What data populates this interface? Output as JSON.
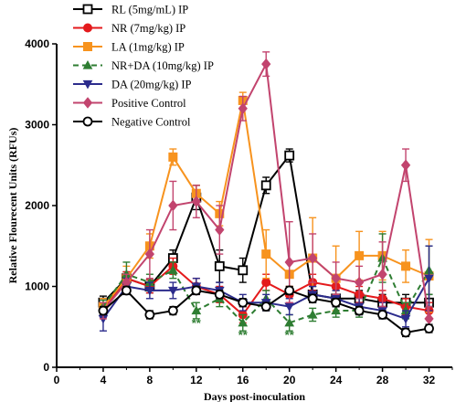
{
  "chart_data": {
    "type": "line",
    "xlabel": "Days post-inoculation",
    "ylabel": "Relative Flourecent Units (RFUs)",
    "xlim": [
      0,
      34
    ],
    "ylim": [
      0,
      4000
    ],
    "xticks": [
      0,
      4,
      8,
      12,
      16,
      20,
      24,
      28,
      32
    ],
    "xtick_labels": [
      "0",
      "4",
      "8",
      "12",
      "16",
      "20",
      "24",
      "28",
      "32"
    ],
    "yticks": [
      0,
      1000,
      2000,
      3000,
      4000
    ],
    "ytick_labels": [
      "0",
      "1000",
      "2000",
      "3000",
      "4000"
    ],
    "legend_position": "top-left",
    "x": [
      4,
      6,
      8,
      10,
      12,
      14,
      16,
      18,
      20,
      22,
      24,
      26,
      28,
      30,
      32
    ],
    "series": [
      {
        "name": "RL (5mg/mL) IP",
        "color": "#000000",
        "marker": "square-open",
        "dash": "solid",
        "values": [
          800,
          1100,
          1000,
          1350,
          2100,
          1250,
          1200,
          2250,
          2620,
          900,
          850,
          850,
          800,
          800,
          800
        ],
        "errors": [
          80,
          80,
          80,
          100,
          150,
          200,
          150,
          100,
          80,
          100,
          100,
          100,
          100,
          100,
          100
        ]
      },
      {
        "name": "NR (7mg/kg) IP",
        "color": "#e41a1c",
        "marker": "circle-filled",
        "dash": "solid",
        "values": [
          700,
          1100,
          1000,
          1250,
          1000,
          900,
          650,
          1050,
          900,
          1050,
          1000,
          900,
          850,
          750,
          700
        ],
        "errors": [
          80,
          80,
          80,
          100,
          100,
          100,
          100,
          100,
          100,
          100,
          100,
          100,
          100,
          100,
          100
        ]
      },
      {
        "name": "LA (1mg/kg) IP",
        "color": "#f7931e",
        "marker": "square-filled",
        "dash": "solid",
        "values": [
          750,
          1100,
          1500,
          2600,
          2150,
          1900,
          3300,
          1400,
          1150,
          1350,
          1100,
          1380,
          1380,
          1250,
          1130
        ],
        "errors": [
          100,
          150,
          150,
          100,
          100,
          150,
          100,
          300,
          150,
          500,
          400,
          300,
          300,
          200,
          450
        ]
      },
      {
        "name": "NR+DA (10mg/kg) IP",
        "color": "#2e7d32",
        "marker": "triangle-up",
        "dash": "dashed",
        "values": [
          750,
          1150,
          1050,
          1200,
          700,
          850,
          550,
          850,
          550,
          650,
          700,
          700,
          1350,
          700,
          1200
        ],
        "errors": [
          80,
          150,
          100,
          100,
          100,
          100,
          100,
          100,
          100,
          80,
          80,
          80,
          300,
          100,
          300
        ]
      },
      {
        "name": "DA (20mg/kg) IP",
        "color": "#2c2c8c",
        "marker": "triangle-down",
        "dash": "solid",
        "values": [
          600,
          1000,
          950,
          950,
          1000,
          950,
          800,
          800,
          750,
          900,
          850,
          750,
          700,
          600,
          1100
        ],
        "errors": [
          150,
          100,
          100,
          100,
          100,
          100,
          100,
          100,
          100,
          100,
          100,
          100,
          100,
          100,
          400
        ]
      },
      {
        "name": "Positive Control",
        "color": "#c2446e",
        "marker": "diamond",
        "dash": "solid",
        "values": [
          700,
          1050,
          1400,
          2000,
          2050,
          1700,
          3200,
          3750,
          1300,
          1350,
          1100,
          1050,
          1150,
          2500,
          600
        ],
        "errors": [
          100,
          100,
          300,
          300,
          200,
          300,
          150,
          150,
          500,
          300,
          200,
          200,
          400,
          200,
          150
        ]
      },
      {
        "name": "Negative Control",
        "color": "#000000",
        "marker": "circle-open",
        "dash": "solid",
        "values": [
          700,
          950,
          650,
          700,
          950,
          900,
          800,
          750,
          950,
          850,
          800,
          700,
          650,
          430,
          480
        ],
        "errors": [
          50,
          50,
          50,
          50,
          50,
          50,
          50,
          50,
          50,
          50,
          50,
          50,
          50,
          50,
          50
        ]
      }
    ],
    "annotations": [
      {
        "text": "**",
        "x": 12,
        "y": 500,
        "color": "#2e7d32"
      },
      {
        "text": "**",
        "x": 16,
        "y": 350,
        "color": "#2e7d32"
      },
      {
        "text": "**",
        "x": 20,
        "y": 350,
        "color": "#2e7d32"
      }
    ]
  }
}
